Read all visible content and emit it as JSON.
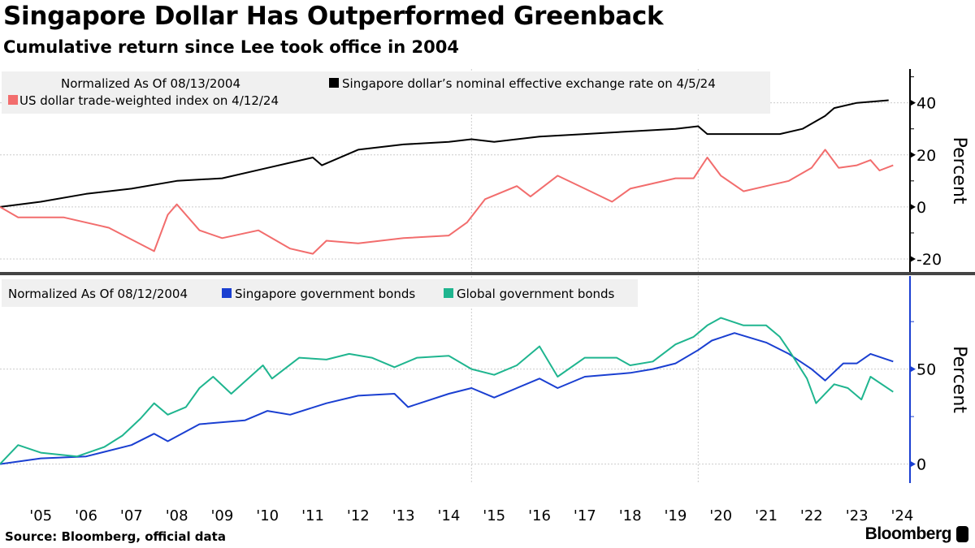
{
  "title": "Singapore Dollar Has Outperformed Greenback",
  "subtitle": "Cumulative return since Lee took office in 2004",
  "source": "Source: Bloomberg, official data",
  "logo": "Bloomberg",
  "chart_data": [
    {
      "type": "line",
      "ylabel": "Percent",
      "ylim": [
        -25,
        53
      ],
      "yticks": [
        -20,
        0,
        20,
        40
      ],
      "grid": true,
      "legend_note": "Normalized As Of 08/13/2004",
      "legend_placement": "top-left",
      "series": [
        {
          "name": "Singapore dollar’s nominal effective exchange rate on 4/5/24",
          "color": "#000000",
          "x": [
            2004.6,
            2005.5,
            2006.5,
            2007.5,
            2008.5,
            2009.5,
            2010.5,
            2011.5,
            2011.7,
            2012.5,
            2013.5,
            2014.5,
            2015.0,
            2015.5,
            2016.5,
            2017.5,
            2018.5,
            2019.5,
            2020.0,
            2020.2,
            2021.0,
            2021.8,
            2022.3,
            2022.8,
            2023.0,
            2023.5,
            2024.2
          ],
          "y": [
            0,
            2,
            5,
            7,
            10,
            11,
            15,
            19,
            16,
            22,
            24,
            25,
            26,
            25,
            27,
            28,
            29,
            30,
            31,
            28,
            28,
            28,
            30,
            35,
            38,
            40,
            41
          ]
        },
        {
          "name": "US dollar trade-weighted index on 4/12/24",
          "color": "#f26d6d",
          "x": [
            2004.6,
            2005.0,
            2006.0,
            2007.0,
            2008.0,
            2008.3,
            2008.5,
            2009.0,
            2009.5,
            2010.3,
            2011.0,
            2011.5,
            2011.8,
            2012.5,
            2013.5,
            2014.5,
            2014.9,
            2015.3,
            2016.0,
            2016.3,
            2016.9,
            2017.5,
            2018.1,
            2018.5,
            2019.5,
            2019.9,
            2020.2,
            2020.5,
            2021.0,
            2021.5,
            2022.0,
            2022.5,
            2022.8,
            2023.1,
            2023.5,
            2023.8,
            2024.0,
            2024.3
          ],
          "y": [
            0,
            -4,
            -4,
            -8,
            -17,
            -3,
            1,
            -9,
            -12,
            -9,
            -16,
            -18,
            -13,
            -14,
            -12,
            -11,
            -6,
            3,
            8,
            4,
            12,
            7,
            2,
            7,
            11,
            11,
            19,
            12,
            6,
            8,
            10,
            15,
            22,
            15,
            16,
            18,
            14,
            16
          ]
        }
      ]
    },
    {
      "type": "line",
      "ylabel": "Percent",
      "ylim": [
        -10,
        99
      ],
      "yticks": [
        0,
        50
      ],
      "grid": true,
      "legend_note": "Normalized As Of 08/12/2004",
      "legend_placement": "top-left",
      "series": [
        {
          "name": "Singapore government bonds",
          "color": "#1a3fd1",
          "x": [
            2004.6,
            2005.5,
            2006.5,
            2007.5,
            2008.0,
            2008.3,
            2009.0,
            2010.0,
            2010.5,
            2011.0,
            2011.8,
            2012.5,
            2013.3,
            2013.6,
            2014.5,
            2015.0,
            2015.5,
            2016.5,
            2016.9,
            2017.5,
            2018.5,
            2019.0,
            2019.5,
            2020.0,
            2020.3,
            2020.8,
            2021.5,
            2022.0,
            2022.5,
            2022.8,
            2023.2,
            2023.5,
            2023.8,
            2024.3
          ],
          "y": [
            0,
            3,
            4,
            10,
            16,
            12,
            21,
            23,
            28,
            26,
            32,
            36,
            37,
            30,
            37,
            40,
            35,
            45,
            40,
            46,
            48,
            50,
            53,
            60,
            65,
            69,
            64,
            58,
            50,
            44,
            53,
            53,
            58,
            54
          ]
        },
        {
          "name": "Global government bonds",
          "color": "#1fb58f",
          "x": [
            2004.6,
            2005.0,
            2005.5,
            2006.3,
            2006.9,
            2007.3,
            2007.7,
            2008.0,
            2008.3,
            2008.7,
            2009.0,
            2009.3,
            2009.7,
            2010.4,
            2010.6,
            2011.2,
            2011.8,
            2012.3,
            2012.8,
            2013.3,
            2013.8,
            2014.5,
            2015.0,
            2015.5,
            2016.0,
            2016.5,
            2016.9,
            2017.5,
            2018.2,
            2018.5,
            2019.0,
            2019.5,
            2019.9,
            2020.2,
            2020.5,
            2021.0,
            2021.5,
            2021.8,
            2022.0,
            2022.4,
            2022.6,
            2023.0,
            2023.3,
            2023.6,
            2023.8,
            2024.3
          ],
          "y": [
            0,
            10,
            6,
            4,
            9,
            15,
            24,
            32,
            26,
            30,
            40,
            46,
            37,
            52,
            45,
            56,
            55,
            58,
            56,
            51,
            56,
            57,
            50,
            47,
            52,
            62,
            46,
            56,
            56,
            52,
            54,
            63,
            67,
            73,
            77,
            73,
            73,
            67,
            60,
            45,
            32,
            42,
            40,
            34,
            46,
            38
          ]
        }
      ]
    }
  ],
  "x_axis": {
    "ticks": [
      "'05",
      "'06",
      "'07",
      "'08",
      "'09",
      "'10",
      "'11",
      "'12",
      "'13",
      "'14",
      "'15",
      "'16",
      "'17",
      "'18",
      "'19",
      "'20",
      "'21",
      "'22",
      "'23",
      "'24"
    ]
  }
}
